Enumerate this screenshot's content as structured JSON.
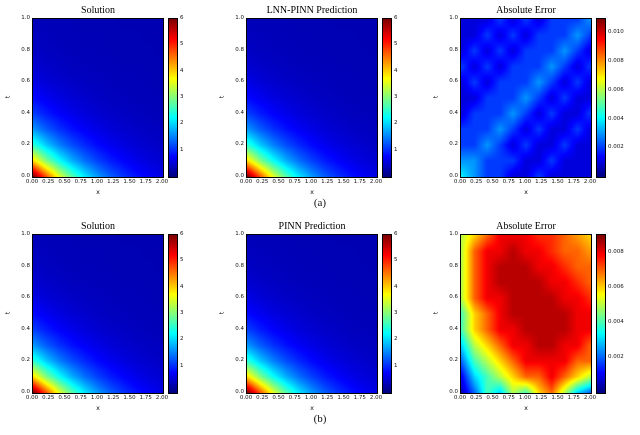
{
  "figure": {
    "captions": {
      "a": "(a)",
      "b": "(b)"
    }
  },
  "chart_data": {
    "type": "heatmap",
    "colormap": "jet",
    "grid_order": "rows from t=0 (bottom) to t=1 (top); columns x=0 to x=2",
    "x_range": [
      0,
      2
    ],
    "t_range": [
      0,
      1
    ],
    "xtick_values": [
      0,
      0.25,
      0.5,
      0.75,
      1.0,
      1.25,
      1.5,
      1.75,
      2.0
    ],
    "xtick_labels": [
      "0.00",
      "0.25",
      "0.50",
      "0.75",
      "1.00",
      "1.25",
      "1.50",
      "1.75",
      "2.00"
    ],
    "ytick_values": [
      0,
      0.2,
      0.4,
      0.6,
      0.8,
      1.0
    ],
    "ytick_labels": [
      "0.0",
      "0.2",
      "0.4",
      "0.6",
      "0.8",
      "1.0"
    ],
    "panels": [
      {
        "title": "Solution",
        "xlabel": "x",
        "ylabel": "t",
        "grid": "solution",
        "vmin": 0,
        "vmax": 6,
        "ctick_values": [
          1,
          2,
          3,
          4,
          5,
          6
        ],
        "ctick_labels": [
          "1",
          "2",
          "3",
          "4",
          "5",
          "6"
        ]
      },
      {
        "title": "LNN-PINN Prediction",
        "xlabel": "x",
        "ylabel": "t",
        "grid": "solution",
        "vmin": 0,
        "vmax": 6,
        "ctick_values": [
          1,
          2,
          3,
          4,
          5,
          6
        ],
        "ctick_labels": [
          "1",
          "2",
          "3",
          "4",
          "5",
          "6"
        ]
      },
      {
        "title": "Absolute Error",
        "xlabel": "x",
        "ylabel": "t",
        "grid": "error_a",
        "vmin": 0,
        "vmax": 0.011,
        "ctick_values": [
          0.002,
          0.004,
          0.006,
          0.008,
          0.01
        ],
        "ctick_labels": [
          "0.002",
          "0.004",
          "0.006",
          "0.008",
          "0.010"
        ]
      },
      {
        "title": "Solution",
        "xlabel": "x",
        "ylabel": "t",
        "grid": "solution",
        "vmin": 0,
        "vmax": 6,
        "ctick_values": [
          1,
          2,
          3,
          4,
          5,
          6
        ],
        "ctick_labels": [
          "1",
          "2",
          "3",
          "4",
          "5",
          "6"
        ]
      },
      {
        "title": "PINN Prediction",
        "xlabel": "x",
        "ylabel": "t",
        "grid": "solution",
        "vmin": 0,
        "vmax": 6,
        "ctick_values": [
          1,
          2,
          3,
          4,
          5,
          6
        ],
        "ctick_labels": [
          "1",
          "2",
          "3",
          "4",
          "5",
          "6"
        ]
      },
      {
        "title": "Absolute Error",
        "xlabel": "x",
        "ylabel": "t",
        "grid": "error_b",
        "vmin": 0,
        "vmax": 0.009,
        "ctick_values": [
          0.002,
          0.004,
          0.006,
          0.008
        ],
        "ctick_labels": [
          "0.002",
          "0.004",
          "0.006",
          "0.008"
        ]
      }
    ],
    "grids": {
      "solution": [
        [
          6.0,
          4.75,
          3.59,
          2.74,
          2.11,
          1.64,
          1.29,
          1.03,
          0.84,
          0.7,
          0.6
        ],
        [
          3.94,
          3.0,
          2.3,
          1.78,
          1.4,
          1.12,
          0.9,
          0.75,
          0.63,
          0.54,
          0.48
        ],
        [
          2.51,
          1.94,
          1.51,
          1.2,
          0.97,
          0.79,
          0.66,
          0.57,
          0.5,
          0.45,
          0.41
        ],
        [
          1.64,
          1.29,
          1.03,
          0.84,
          0.7,
          0.6,
          0.52,
          0.46,
          0.42,
          0.39,
          0.37
        ],
        [
          1.11,
          0.9,
          0.74,
          0.63,
          0.54,
          0.48,
          0.43,
          0.4,
          0.37,
          0.35,
          0.34
        ],
        [
          0.79,
          0.67,
          0.57,
          0.5,
          0.45,
          0.41,
          0.38,
          0.36,
          0.34,
          0.33,
          0.32
        ],
        [
          0.6,
          0.52,
          0.46,
          0.42,
          0.39,
          0.37,
          0.35,
          0.34,
          0.33,
          0.32,
          0.31
        ],
        [
          0.48,
          0.43,
          0.4,
          0.37,
          0.35,
          0.34,
          0.33,
          0.32,
          0.32,
          0.31,
          0.31
        ],
        [
          0.41,
          0.38,
          0.36,
          0.34,
          0.33,
          0.32,
          0.32,
          0.31,
          0.31,
          0.31,
          0.3
        ],
        [
          0.37,
          0.35,
          0.34,
          0.33,
          0.32,
          0.32,
          0.31,
          0.31,
          0.31,
          0.3,
          0.3
        ],
        [
          0.34,
          0.33,
          0.32,
          0.32,
          0.31,
          0.31,
          0.31,
          0.3,
          0.3,
          0.3,
          0.3
        ]
      ],
      "error_a": [
        [
          0.004,
          0.003,
          0.002,
          0.002,
          0.001,
          0.001,
          0.002,
          0.001,
          0.001,
          0.001,
          0.001
        ],
        [
          0.003,
          0.003,
          0.002,
          0.002,
          0.002,
          0.001,
          0.001,
          0.002,
          0.001,
          0.001,
          0.001
        ],
        [
          0.002,
          0.002,
          0.003,
          0.002,
          0.001,
          0.002,
          0.001,
          0.001,
          0.002,
          0.001,
          0.001
        ],
        [
          0.002,
          0.002,
          0.002,
          0.003,
          0.002,
          0.001,
          0.002,
          0.001,
          0.001,
          0.002,
          0.001
        ],
        [
          0.001,
          0.002,
          0.002,
          0.002,
          0.003,
          0.002,
          0.001,
          0.002,
          0.001,
          0.001,
          0.002
        ],
        [
          0.001,
          0.001,
          0.002,
          0.002,
          0.002,
          0.003,
          0.002,
          0.001,
          0.002,
          0.001,
          0.001
        ],
        [
          0.001,
          0.002,
          0.001,
          0.002,
          0.002,
          0.002,
          0.003,
          0.002,
          0.001,
          0.002,
          0.001
        ],
        [
          0.002,
          0.001,
          0.002,
          0.001,
          0.002,
          0.002,
          0.002,
          0.003,
          0.002,
          0.001,
          0.002
        ],
        [
          0.001,
          0.002,
          0.001,
          0.002,
          0.001,
          0.002,
          0.002,
          0.002,
          0.003,
          0.002,
          0.001
        ],
        [
          0.001,
          0.001,
          0.002,
          0.001,
          0.002,
          0.001,
          0.002,
          0.002,
          0.002,
          0.003,
          0.002
        ],
        [
          0.001,
          0.001,
          0.001,
          0.002,
          0.001,
          0.002,
          0.001,
          0.002,
          0.002,
          0.002,
          0.003
        ]
      ],
      "error_b": [
        [
          0.0005,
          0.002,
          0.004,
          0.003,
          0.005,
          0.004,
          0.006,
          0.007,
          0.005,
          0.003,
          0.002
        ],
        [
          0.001,
          0.003,
          0.004,
          0.005,
          0.006,
          0.007,
          0.007,
          0.008,
          0.007,
          0.006,
          0.005
        ],
        [
          0.002,
          0.004,
          0.005,
          0.006,
          0.007,
          0.008,
          0.008,
          0.008,
          0.008,
          0.007,
          0.007
        ],
        [
          0.003,
          0.005,
          0.006,
          0.007,
          0.008,
          0.008,
          0.0085,
          0.0085,
          0.008,
          0.008,
          0.007
        ],
        [
          0.004,
          0.006,
          0.007,
          0.008,
          0.008,
          0.0085,
          0.0085,
          0.0085,
          0.0085,
          0.008,
          0.008
        ],
        [
          0.004,
          0.006,
          0.007,
          0.008,
          0.0085,
          0.0085,
          0.0085,
          0.0085,
          0.0085,
          0.008,
          0.008
        ],
        [
          0.005,
          0.007,
          0.008,
          0.008,
          0.0085,
          0.0085,
          0.0085,
          0.0085,
          0.008,
          0.008,
          0.0075
        ],
        [
          0.005,
          0.007,
          0.008,
          0.0085,
          0.0085,
          0.0085,
          0.0085,
          0.008,
          0.008,
          0.0075,
          0.007
        ],
        [
          0.005,
          0.007,
          0.008,
          0.0085,
          0.0085,
          0.0085,
          0.008,
          0.008,
          0.0075,
          0.007,
          0.007
        ],
        [
          0.005,
          0.007,
          0.008,
          0.008,
          0.0085,
          0.008,
          0.008,
          0.0075,
          0.007,
          0.007,
          0.0065
        ],
        [
          0.005,
          0.006,
          0.007,
          0.008,
          0.008,
          0.008,
          0.0075,
          0.0075,
          0.007,
          0.0065,
          0.006
        ]
      ]
    }
  }
}
